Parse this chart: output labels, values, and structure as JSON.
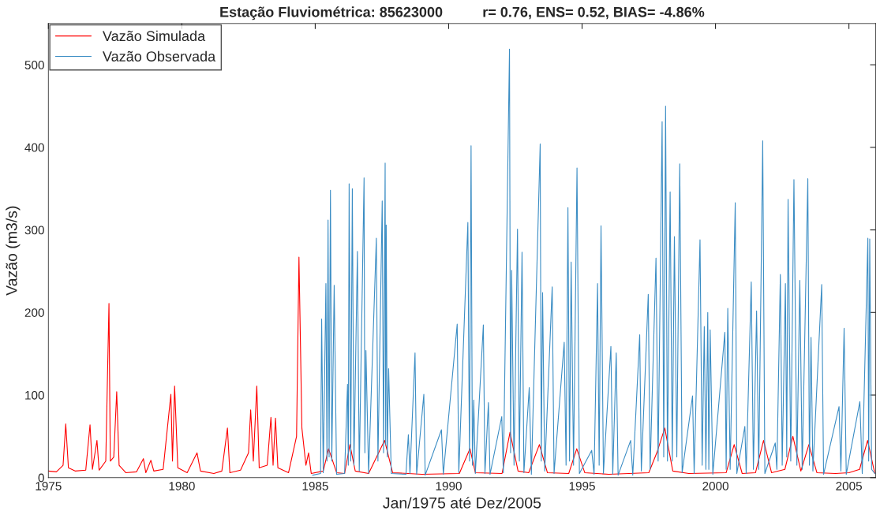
{
  "chart_data": {
    "type": "line",
    "title": "Estação Fluviométrica: 85623000          r= 0.76, ENS= 0.52, BIAS= -4.86%",
    "xlabel": "Jan/1975 até Dez/2005",
    "ylabel": "Vazão (m3/s)",
    "xlim": [
      1975,
      2006
    ],
    "xticks": [
      1975,
      1980,
      1985,
      1990,
      1995,
      2000,
      2005
    ],
    "ylim": [
      0,
      550
    ],
    "yticks": [
      0,
      100,
      200,
      300,
      400,
      500
    ],
    "grid": false,
    "legend": "top left",
    "marker": "none",
    "line_style": "solid",
    "series": [
      {
        "name": "Vazão Simulada",
        "color": "#ff0000",
        "x": [
          1975.0,
          1975.3,
          1975.55,
          1975.65,
          1975.75,
          1976.0,
          1976.4,
          1976.56,
          1976.65,
          1976.82,
          1976.9,
          1977.15,
          1977.27,
          1977.32,
          1977.45,
          1977.56,
          1977.65,
          1977.9,
          1978.3,
          1978.56,
          1978.65,
          1978.84,
          1978.95,
          1979.3,
          1979.59,
          1979.65,
          1979.73,
          1979.85,
          1980.2,
          1980.57,
          1980.7,
          1981.2,
          1981.5,
          1981.71,
          1981.8,
          1982.2,
          1982.5,
          1982.58,
          1982.68,
          1982.81,
          1982.9,
          1983.2,
          1983.34,
          1983.42,
          1983.51,
          1983.6,
          1984.0,
          1984.3,
          1984.39,
          1984.5,
          1984.65,
          1984.75,
          1984.85,
          1985.3,
          1985.5,
          1985.8,
          1986.1,
          1986.3,
          1986.5,
          1987.0,
          1987.6,
          1987.9,
          1989.0,
          1990.4,
          1990.8,
          1991.0,
          1992.0,
          1992.3,
          1992.6,
          1993.0,
          1993.4,
          1993.7,
          1994.5,
          1994.8,
          1995.1,
          1996.0,
          1997.5,
          1997.8,
          1998.1,
          1998.4,
          1999.0,
          2000.4,
          2000.7,
          2001.0,
          2001.5,
          2001.8,
          2002.1,
          2002.6,
          2002.9,
          2003.2,
          2003.5,
          2003.8,
          2004.5,
          2005.0,
          2005.4,
          2005.7,
          2005.97
        ],
        "values": [
          8,
          7,
          15,
          65,
          12,
          8,
          9,
          64,
          10,
          45,
          9,
          20,
          211,
          20,
          25,
          104,
          15,
          6,
          7,
          23,
          6,
          21,
          8,
          10,
          101,
          20,
          111,
          12,
          6,
          30,
          8,
          5,
          8,
          60,
          6,
          9,
          30,
          82,
          20,
          111,
          12,
          15,
          73,
          15,
          72,
          12,
          6,
          50,
          267,
          60,
          15,
          30,
          5,
          8,
          35,
          6,
          5,
          40,
          8,
          5,
          45,
          6,
          4,
          5,
          35,
          6,
          5,
          55,
          8,
          6,
          40,
          6,
          5,
          35,
          6,
          4,
          6,
          30,
          60,
          8,
          5,
          6,
          40,
          5,
          6,
          45,
          6,
          10,
          50,
          8,
          40,
          6,
          5,
          6,
          10,
          45,
          5
        ]
      },
      {
        "name": "Vazão Observada",
        "color": "#3b8dc4",
        "x": [
          1984.9,
          1985.2,
          1985.24,
          1985.3,
          1985.4,
          1985.44,
          1985.48,
          1985.52,
          1985.57,
          1985.62,
          1985.71,
          1985.8,
          1986.1,
          1986.21,
          1986.24,
          1986.27,
          1986.33,
          1986.39,
          1986.45,
          1986.58,
          1986.65,
          1986.83,
          1986.86,
          1986.9,
          1987.0,
          1987.29,
          1987.35,
          1987.51,
          1987.56,
          1987.62,
          1987.64,
          1987.66,
          1987.7,
          1987.75,
          1987.85,
          1988.4,
          1988.49,
          1988.55,
          1988.74,
          1988.8,
          1989.07,
          1989.12,
          1989.73,
          1989.8,
          1990.32,
          1990.38,
          1990.72,
          1990.78,
          1990.84,
          1990.89,
          1990.94,
          1991.0,
          1991.3,
          1991.36,
          1991.49,
          1991.55,
          1991.99,
          1992.05,
          1992.28,
          1992.32,
          1992.36,
          1992.45,
          1992.58,
          1992.65,
          1992.75,
          1992.82,
          1993.02,
          1993.1,
          1993.43,
          1993.47,
          1993.52,
          1993.6,
          1993.88,
          1993.95,
          1994.33,
          1994.4,
          1994.47,
          1994.53,
          1994.59,
          1994.68,
          1994.81,
          1994.9,
          1995.36,
          1995.45,
          1995.58,
          1995.64,
          1995.71,
          1995.8,
          1996.08,
          1996.15,
          1996.28,
          1996.35,
          1996.82,
          1996.9,
          1997.16,
          1997.22,
          1997.48,
          1997.55,
          1997.77,
          1997.85,
          1998.0,
          1998.06,
          1998.13,
          1998.2,
          1998.3,
          1998.38,
          1998.46,
          1998.55,
          1998.66,
          1998.75,
          1999.14,
          1999.2,
          1999.42,
          1999.5,
          1999.58,
          1999.64,
          1999.71,
          1999.75,
          1999.8,
          1999.9,
          2000.35,
          2000.4,
          2000.46,
          2000.55,
          2000.74,
          2000.8,
          2001.1,
          2001.15,
          2001.34,
          2001.42,
          2001.54,
          2001.62,
          2001.77,
          2001.85,
          2002.24,
          2002.3,
          2002.43,
          2002.5,
          2002.62,
          2002.67,
          2002.72,
          2002.82,
          2002.94,
          2003.05,
          2003.16,
          2003.25,
          2003.46,
          2003.52,
          2003.58,
          2003.65,
          2003.98,
          2004.05,
          2004.63,
          2004.7,
          2004.82,
          2004.9,
          2005.41,
          2005.5,
          2005.71,
          2005.74,
          2005.78,
          2005.85,
          2005.97
        ],
        "values": [
          3,
          5,
          192,
          6,
          235,
          20,
          312,
          25,
          348,
          20,
          233,
          4,
          5,
          113,
          15,
          356,
          20,
          350,
          15,
          274,
          8,
          363,
          30,
          154,
          5,
          290,
          20,
          335,
          30,
          381,
          40,
          306,
          25,
          132,
          5,
          4,
          52,
          5,
          151,
          4,
          101,
          3,
          58,
          4,
          186,
          6,
          309,
          20,
          402,
          15,
          94,
          5,
          185,
          5,
          91,
          4,
          74,
          6,
          519,
          30,
          251,
          15,
          301,
          20,
          273,
          6,
          109,
          4,
          404,
          20,
          224,
          8,
          231,
          5,
          164,
          15,
          327,
          20,
          261,
          15,
          375,
          5,
          33,
          4,
          235,
          15,
          305,
          5,
          159,
          4,
          151,
          3,
          45,
          3,
          173,
          8,
          222,
          10,
          266,
          20,
          431,
          25,
          450,
          20,
          346,
          20,
          292,
          25,
          380,
          6,
          99,
          5,
          288,
          15,
          183,
          10,
          200,
          10,
          179,
          4,
          176,
          10,
          205,
          10,
          333,
          5,
          62,
          5,
          237,
          10,
          202,
          10,
          408,
          5,
          42,
          10,
          246,
          15,
          235,
          25,
          337,
          20,
          361,
          15,
          239,
          10,
          362,
          15,
          170,
          8,
          234,
          4,
          86,
          8,
          181,
          4,
          92,
          5,
          290,
          20,
          289,
          10,
          5
        ]
      }
    ]
  }
}
